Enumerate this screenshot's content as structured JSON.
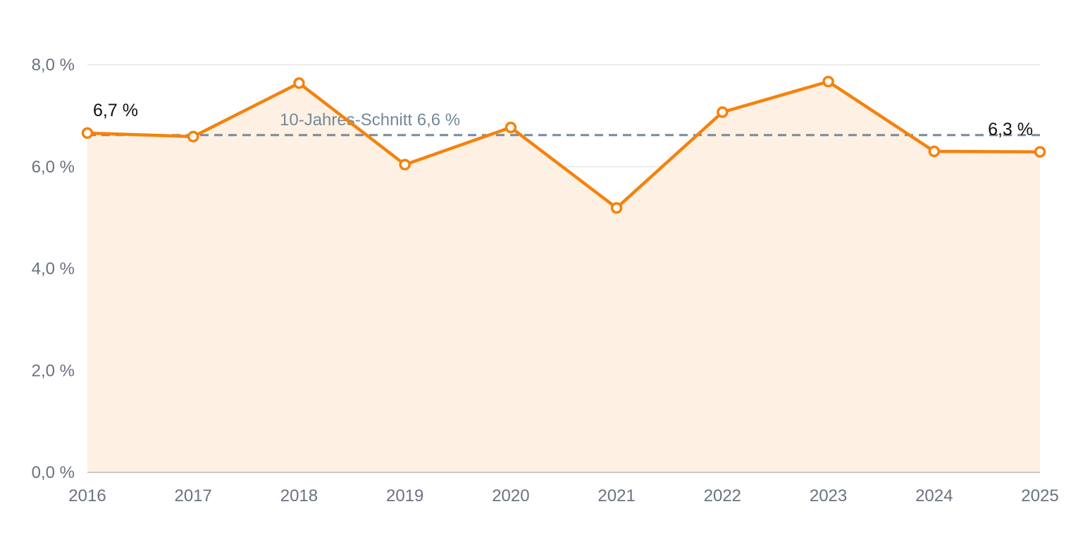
{
  "chart_data": {
    "type": "area",
    "title": "",
    "xlabel": "",
    "ylabel": "",
    "categories": [
      "2016",
      "2017",
      "2018",
      "2019",
      "2020",
      "2021",
      "2022",
      "2023",
      "2024",
      "2025"
    ],
    "values": [
      6.66,
      6.59,
      7.64,
      6.04,
      6.77,
      5.19,
      7.07,
      7.67,
      6.3,
      6.29
    ],
    "ylim": [
      0,
      8
    ],
    "yticks": [
      {
        "value": 0,
        "label": "0,0 %"
      },
      {
        "value": 2,
        "label": "2,0 %"
      },
      {
        "value": 4,
        "label": "4,0 %"
      },
      {
        "value": 6,
        "label": "6,0 %"
      },
      {
        "value": 8,
        "label": "8,0 %"
      }
    ],
    "grid": true,
    "legend": "none",
    "point_labels": [
      {
        "index": 0,
        "text": "6,7 %"
      },
      {
        "index": 9,
        "text": "6,3 %"
      }
    ],
    "reference_line": {
      "value": 6.62,
      "label": "10-Jahres-Schnitt 6,6 %",
      "style": "dashed"
    },
    "colors": {
      "line": "#f5820d",
      "fill": "#fef1e4",
      "reference": "#778899",
      "grid": "#e5e7eb",
      "axis": "#c9c9c9"
    }
  }
}
